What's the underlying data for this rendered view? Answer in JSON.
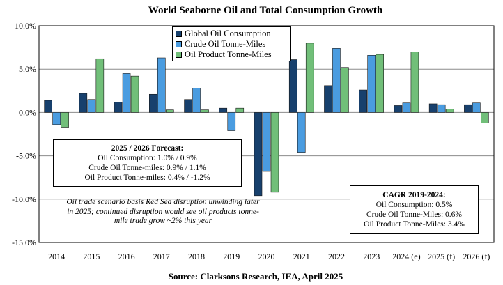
{
  "chart_data": {
    "type": "bar",
    "title": "World Seaborne Oil and Total Consumption Growth",
    "source": "Source: Clarksons Research, IEA, April 2025",
    "categories": [
      "2014",
      "2015",
      "2016",
      "2017",
      "2018",
      "2019",
      "2020",
      "2021",
      "2022",
      "2023",
      "2024 (e)",
      "2025 (f)",
      "2026 (f)"
    ],
    "ylim": [
      -15,
      10
    ],
    "yticks": [
      -15,
      -10,
      -5,
      0,
      5,
      10
    ],
    "ytick_labels": [
      "-15.0%",
      "-10.0%",
      "-5.0%",
      "0.0%",
      "5.0%",
      "10.0%"
    ],
    "grid": true,
    "legend_position": "top-center",
    "series": [
      {
        "name": "Global Oil Consumption",
        "color": "#17406d",
        "values": [
          1.4,
          2.2,
          1.2,
          2.1,
          1.5,
          0.5,
          -9.6,
          6.1,
          3.1,
          2.6,
          0.8,
          1.0,
          0.9
        ]
      },
      {
        "name": "Crude Oil Tonne-Miles",
        "color": "#4a9ce0",
        "values": [
          -1.4,
          1.5,
          4.5,
          6.3,
          2.8,
          -2.1,
          -6.8,
          -4.6,
          7.4,
          6.6,
          1.1,
          0.9,
          1.1
        ]
      },
      {
        "name": "Oil Product Tonne-Miles",
        "color": "#71bf79",
        "values": [
          -1.7,
          6.2,
          4.2,
          0.3,
          0.3,
          0.5,
          -9.2,
          8.0,
          5.2,
          6.7,
          7.0,
          0.4,
          -1.2
        ]
      }
    ],
    "annotations": {
      "forecast": {
        "title": "2025 / 2026 Forecast:",
        "lines": [
          "Oil Consumption: 1.0% / 0.9%",
          "Crude Oil Tonne-miles: 0.9% / 1.1%",
          "Oil Product Tonne-miles: 0.4% / -1.2%"
        ]
      },
      "cagr": {
        "title": "CAGR 2019-2024:",
        "lines": [
          "Oil Consumption: 0.5%",
          "Crude Oil Tonne-Miles: 0.6%",
          "Oil Product Tonne-Miles: 3.4%"
        ]
      },
      "note": "Oil trade scenario basis Red Sea disruption unwinding later in 2025; continued disruption would see oil products tonne-mile trade grow ~2% this year"
    }
  }
}
